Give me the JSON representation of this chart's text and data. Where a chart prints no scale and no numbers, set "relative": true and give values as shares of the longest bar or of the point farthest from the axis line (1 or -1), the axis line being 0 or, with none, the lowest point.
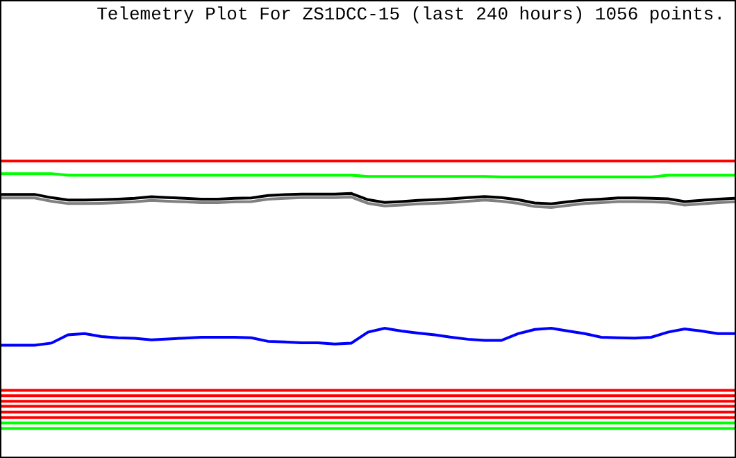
{
  "chart_data": {
    "type": "line",
    "title": "Telemetry Plot For ZS1DCC-15 (last 240 hours) 1056 points.",
    "relative": true,
    "grid": false,
    "legend": false,
    "marker": "none",
    "line_style": "solid",
    "categories": [
      null,
      null,
      null,
      null,
      null,
      null,
      null,
      null,
      null,
      null,
      null,
      null,
      null,
      null,
      null,
      null,
      null,
      null,
      null,
      null,
      null,
      null,
      null,
      null,
      null,
      null,
      null,
      null,
      null,
      null,
      null,
      null,
      null,
      null,
      null,
      null,
      null,
      null,
      null,
      null,
      null,
      null,
      null,
      null,
      null
    ],
    "series": [
      {
        "color": "#ff0000",
        "values": [
          1,
          1,
          1,
          1,
          1,
          1,
          1,
          1,
          1,
          1,
          1,
          1,
          1,
          1,
          1,
          1,
          1,
          1,
          1,
          1,
          1,
          1,
          1,
          1,
          1,
          1,
          1,
          1,
          1,
          1,
          1,
          1,
          1,
          1,
          1,
          1,
          1,
          1,
          1,
          1,
          1,
          1,
          1,
          1,
          1
        ]
      },
      {
        "color": "#00ff00",
        "values": [
          0.957,
          0.957,
          0.957,
          0.957,
          0.952,
          0.952,
          0.952,
          0.952,
          0.952,
          0.952,
          0.952,
          0.952,
          0.952,
          0.952,
          0.952,
          0.952,
          0.952,
          0.952,
          0.952,
          0.952,
          0.952,
          0.952,
          0.948,
          0.948,
          0.948,
          0.948,
          0.948,
          0.948,
          0.948,
          0.948,
          0.946,
          0.946,
          0.946,
          0.946,
          0.946,
          0.946,
          0.946,
          0.946,
          0.946,
          0.946,
          0.952,
          0.952,
          0.952,
          0.952,
          0.952
        ]
      },
      {
        "color": "#808080",
        "values": [
          0.875,
          0.875,
          0.875,
          0.864,
          0.856,
          0.856,
          0.857,
          0.859,
          0.862,
          0.867,
          0.864,
          0.862,
          0.859,
          0.859,
          0.862,
          0.863,
          0.871,
          0.874,
          0.876,
          0.876,
          0.876,
          0.878,
          0.857,
          0.848,
          0.851,
          0.855,
          0.857,
          0.86,
          0.864,
          0.868,
          0.864,
          0.857,
          0.846,
          0.843,
          0.85,
          0.856,
          0.859,
          0.863,
          0.863,
          0.862,
          0.86,
          0.851,
          0.855,
          0.859,
          0.862
        ]
      },
      {
        "color": "#000000",
        "values": [
          0.887,
          0.887,
          0.887,
          0.876,
          0.868,
          0.868,
          0.869,
          0.871,
          0.874,
          0.879,
          0.876,
          0.874,
          0.871,
          0.871,
          0.874,
          0.875,
          0.883,
          0.886,
          0.888,
          0.888,
          0.888,
          0.89,
          0.869,
          0.86,
          0.863,
          0.867,
          0.869,
          0.872,
          0.876,
          0.88,
          0.876,
          0.869,
          0.858,
          0.855,
          0.862,
          0.868,
          0.871,
          0.875,
          0.875,
          0.874,
          0.872,
          0.863,
          0.867,
          0.871,
          0.874
        ]
      },
      {
        "color": "#0000ff",
        "values": [
          0.377,
          0.377,
          0.377,
          0.384,
          0.412,
          0.416,
          0.406,
          0.402,
          0.4,
          0.395,
          0.398,
          0.401,
          0.404,
          0.404,
          0.404,
          0.402,
          0.39,
          0.388,
          0.385,
          0.385,
          0.381,
          0.384,
          0.421,
          0.434,
          0.425,
          0.418,
          0.412,
          0.404,
          0.397,
          0.393,
          0.393,
          0.416,
          0.43,
          0.434,
          0.425,
          0.416,
          0.404,
          0.402,
          0.401,
          0.404,
          0.421,
          0.432,
          0.425,
          0.416,
          0.416
        ]
      },
      {
        "color": "#ff0000",
        "values": [
          0.224,
          0.224,
          0.224,
          0.224,
          0.224,
          0.224,
          0.224,
          0.224,
          0.224,
          0.224,
          0.224,
          0.224,
          0.224,
          0.224,
          0.224,
          0.224,
          0.224,
          0.224,
          0.224,
          0.224,
          0.224,
          0.224,
          0.224,
          0.224,
          0.224,
          0.224,
          0.224,
          0.224,
          0.224,
          0.224,
          0.224,
          0.224,
          0.224,
          0.224,
          0.224,
          0.224,
          0.224,
          0.224,
          0.224,
          0.224,
          0.224,
          0.224,
          0.224,
          0.224,
          0.224
        ]
      },
      {
        "color": "#ff0000",
        "values": [
          0.206,
          0.206,
          0.206,
          0.206,
          0.206,
          0.206,
          0.206,
          0.206,
          0.206,
          0.206,
          0.206,
          0.206,
          0.206,
          0.206,
          0.206,
          0.206,
          0.206,
          0.206,
          0.206,
          0.206,
          0.206,
          0.206,
          0.206,
          0.206,
          0.206,
          0.206,
          0.206,
          0.206,
          0.206,
          0.206,
          0.206,
          0.206,
          0.206,
          0.206,
          0.206,
          0.206,
          0.206,
          0.206,
          0.206,
          0.206,
          0.206,
          0.206,
          0.206,
          0.206,
          0.206
        ]
      },
      {
        "color": "#ff0000",
        "values": [
          0.187,
          0.187,
          0.187,
          0.187,
          0.187,
          0.187,
          0.187,
          0.187,
          0.187,
          0.187,
          0.187,
          0.187,
          0.187,
          0.187,
          0.187,
          0.187,
          0.187,
          0.187,
          0.187,
          0.187,
          0.187,
          0.187,
          0.187,
          0.187,
          0.187,
          0.187,
          0.187,
          0.187,
          0.187,
          0.187,
          0.187,
          0.187,
          0.187,
          0.187,
          0.187,
          0.187,
          0.187,
          0.187,
          0.187,
          0.187,
          0.187,
          0.187,
          0.187,
          0.187,
          0.187
        ]
      },
      {
        "color": "#ff0000",
        "values": [
          0.17,
          0.17,
          0.17,
          0.17,
          0.17,
          0.17,
          0.17,
          0.17,
          0.17,
          0.17,
          0.17,
          0.17,
          0.17,
          0.17,
          0.17,
          0.17,
          0.17,
          0.17,
          0.17,
          0.17,
          0.17,
          0.17,
          0.17,
          0.17,
          0.17,
          0.17,
          0.17,
          0.17,
          0.17,
          0.17,
          0.17,
          0.17,
          0.17,
          0.17,
          0.17,
          0.17,
          0.17,
          0.17,
          0.17,
          0.17,
          0.17,
          0.17,
          0.17,
          0.17,
          0.17
        ]
      },
      {
        "color": "#ff0000",
        "values": [
          0.151,
          0.151,
          0.151,
          0.151,
          0.151,
          0.151,
          0.151,
          0.151,
          0.151,
          0.151,
          0.151,
          0.151,
          0.151,
          0.151,
          0.151,
          0.151,
          0.151,
          0.151,
          0.151,
          0.151,
          0.151,
          0.151,
          0.151,
          0.151,
          0.151,
          0.151,
          0.151,
          0.151,
          0.151,
          0.151,
          0.151,
          0.151,
          0.151,
          0.151,
          0.151,
          0.151,
          0.151,
          0.151,
          0.151,
          0.151,
          0.151,
          0.151,
          0.151,
          0.151,
          0.151
        ]
      },
      {
        "color": "#ff0000",
        "values": [
          0.132,
          0.132,
          0.132,
          0.132,
          0.132,
          0.132,
          0.132,
          0.132,
          0.132,
          0.132,
          0.132,
          0.132,
          0.132,
          0.132,
          0.132,
          0.132,
          0.132,
          0.132,
          0.132,
          0.132,
          0.132,
          0.132,
          0.132,
          0.132,
          0.132,
          0.132,
          0.132,
          0.132,
          0.132,
          0.132,
          0.132,
          0.132,
          0.132,
          0.132,
          0.132,
          0.132,
          0.132,
          0.132,
          0.132,
          0.132,
          0.132,
          0.132,
          0.132,
          0.132,
          0.132
        ]
      },
      {
        "color": "#00ff00",
        "values": [
          0.114,
          0.114,
          0.114,
          0.114,
          0.114,
          0.114,
          0.114,
          0.114,
          0.114,
          0.114,
          0.114,
          0.114,
          0.114,
          0.114,
          0.114,
          0.114,
          0.114,
          0.114,
          0.114,
          0.114,
          0.114,
          0.114,
          0.114,
          0.114,
          0.114,
          0.114,
          0.114,
          0.114,
          0.114,
          0.114,
          0.114,
          0.114,
          0.114,
          0.114,
          0.114,
          0.114,
          0.114,
          0.114,
          0.114,
          0.114,
          0.114,
          0.114,
          0.114,
          0.114,
          0.114
        ]
      },
      {
        "color": "#00ff00",
        "values": [
          0.095,
          0.095,
          0.095,
          0.095,
          0.095,
          0.095,
          0.095,
          0.095,
          0.095,
          0.095,
          0.095,
          0.095,
          0.095,
          0.095,
          0.095,
          0.095,
          0.095,
          0.095,
          0.095,
          0.095,
          0.095,
          0.095,
          0.095,
          0.095,
          0.095,
          0.095,
          0.095,
          0.095,
          0.095,
          0.095,
          0.095,
          0.095,
          0.095,
          0.095,
          0.095,
          0.095,
          0.095,
          0.095,
          0.095,
          0.095,
          0.095,
          0.095,
          0.095,
          0.095,
          0.095
        ]
      }
    ]
  }
}
